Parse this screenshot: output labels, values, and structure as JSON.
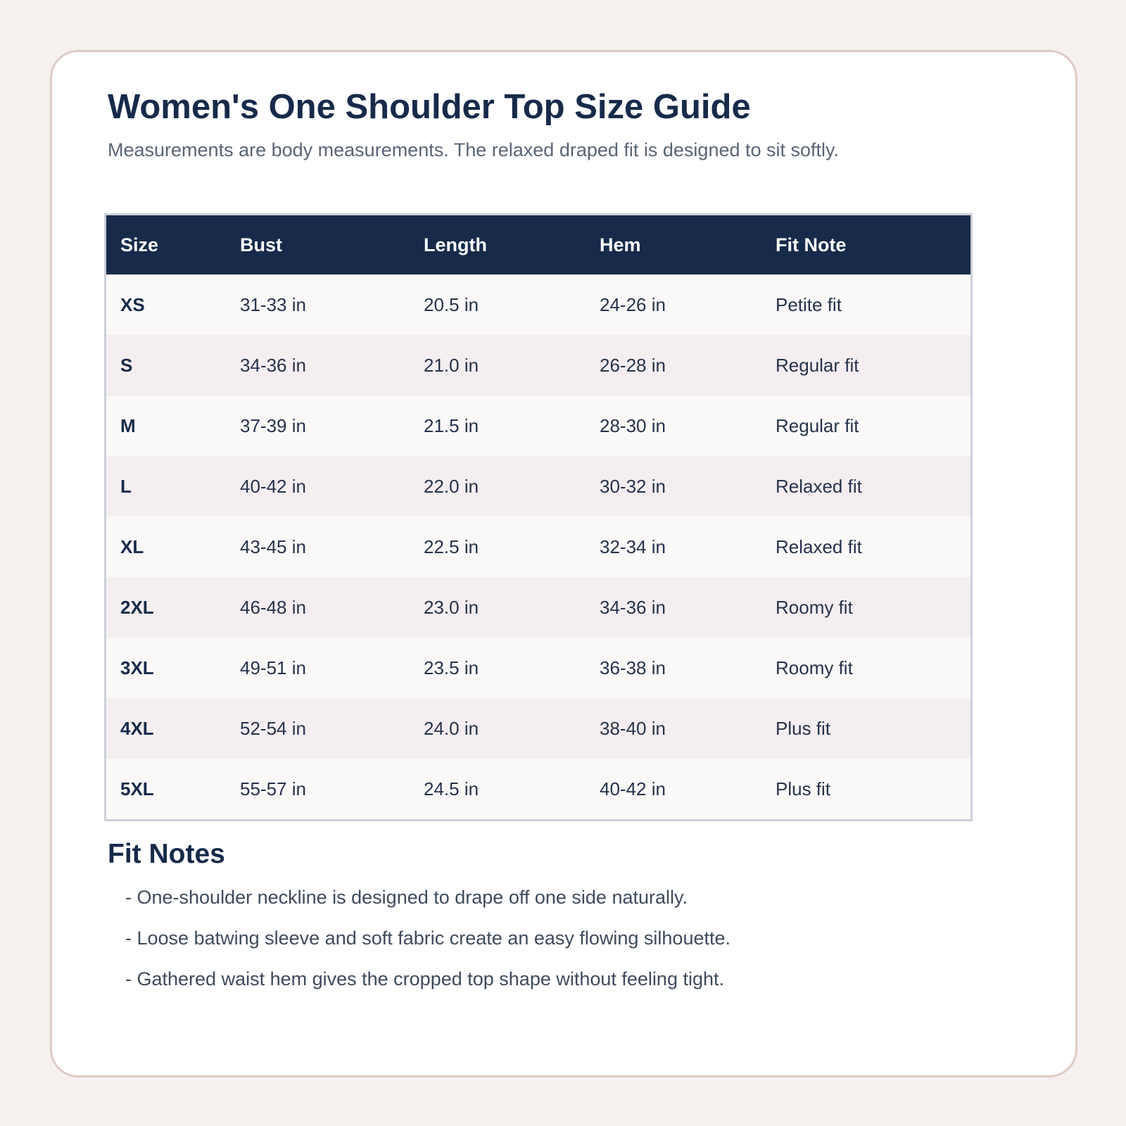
{
  "header": {
    "title": "Women's One Shoulder Top Size Guide",
    "subtitle": "Measurements are body measurements. The relaxed draped fit is designed to sit softly."
  },
  "table": {
    "columns": [
      "Size",
      "Bust",
      "Length",
      "Hem",
      "Fit Note"
    ],
    "rows": [
      [
        "XS",
        "31-33 in",
        "20.5 in",
        "24-26 in",
        "Petite fit"
      ],
      [
        "S",
        "34-36 in",
        "21.0 in",
        "26-28 in",
        "Regular fit"
      ],
      [
        "M",
        "37-39 in",
        "21.5 in",
        "28-30 in",
        "Regular fit"
      ],
      [
        "L",
        "40-42 in",
        "22.0 in",
        "30-32 in",
        "Relaxed fit"
      ],
      [
        "XL",
        "43-45 in",
        "22.5 in",
        "32-34 in",
        "Relaxed fit"
      ],
      [
        "2XL",
        "46-48 in",
        "23.0 in",
        "34-36 in",
        "Roomy fit"
      ],
      [
        "3XL",
        "49-51 in",
        "23.5 in",
        "36-38 in",
        "Roomy fit"
      ],
      [
        "4XL",
        "52-54 in",
        "24.0 in",
        "38-40 in",
        "Plus fit"
      ],
      [
        "5XL",
        "55-57 in",
        "24.5 in",
        "40-42 in",
        "Plus fit"
      ]
    ]
  },
  "notes": {
    "title": "Fit Notes",
    "items": [
      "- One-shoulder neckline is designed to drape off one side naturally.",
      "- Loose batwing sleeve and soft fabric create an easy flowing silhouette.",
      "- Gathered waist hem gives the cropped top shape without feeling tight."
    ]
  }
}
